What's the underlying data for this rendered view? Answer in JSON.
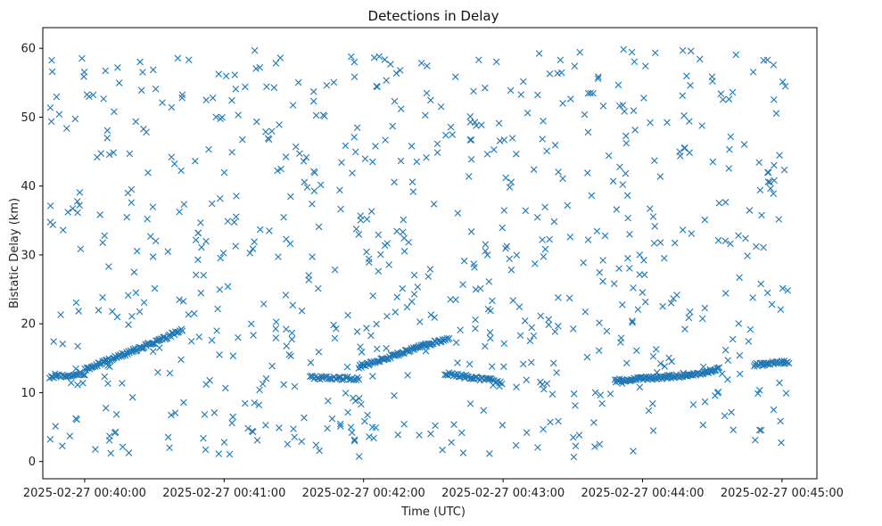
{
  "chart_data": {
    "type": "scatter",
    "title": "Detections in Delay",
    "xlabel": "Time (UTC)",
    "ylabel": "Bistatic Delay (km)",
    "marker": "x",
    "color": "#1f77b4",
    "xlim_seconds": [
      -18,
      315
    ],
    "ylim": [
      -2.5,
      63
    ],
    "x_ticks": [
      {
        "t": 0,
        "label": "2025-02-27 00:40:00"
      },
      {
        "t": 60,
        "label": "2025-02-27 00:41:00"
      },
      {
        "t": 120,
        "label": "2025-02-27 00:42:00"
      },
      {
        "t": 180,
        "label": "2025-02-27 00:43:00"
      },
      {
        "t": 240,
        "label": "2025-02-27 00:44:00"
      },
      {
        "t": 300,
        "label": "2025-02-27 00:45:00"
      }
    ],
    "y_ticks": [
      0,
      10,
      20,
      30,
      40,
      50,
      60
    ],
    "track_segments": [
      {
        "t0": -15,
        "y0": 12.3,
        "t1": 0,
        "y1": 12.8,
        "step": 0.6
      },
      {
        "t0": 0,
        "y0": 13.3,
        "t1": 35,
        "y1": 18.0,
        "step": 0.45
      },
      {
        "t0": 35,
        "y0": 18.0,
        "t1": 42,
        "y1": 19.2,
        "step": 0.5
      },
      {
        "t0": 97,
        "y0": 12.2,
        "t1": 118,
        "y1": 12.0,
        "step": 0.6
      },
      {
        "t0": 118,
        "y0": 13.8,
        "t1": 157,
        "y1": 18.0,
        "step": 0.45
      },
      {
        "t0": 155,
        "y0": 12.8,
        "t1": 180,
        "y1": 11.5,
        "step": 0.6
      },
      {
        "t0": 228,
        "y0": 11.7,
        "t1": 262,
        "y1": 12.6,
        "step": 0.45
      },
      {
        "t0": 262,
        "y0": 12.7,
        "t1": 273,
        "y1": 13.4,
        "step": 0.5
      },
      {
        "t0": 288,
        "y0": 14.0,
        "t1": 303,
        "y1": 14.5,
        "step": 0.5
      }
    ],
    "clutter": {
      "count": 760,
      "t_range": [
        -15,
        303
      ],
      "y_range": [
        0.5,
        60
      ]
    }
  }
}
